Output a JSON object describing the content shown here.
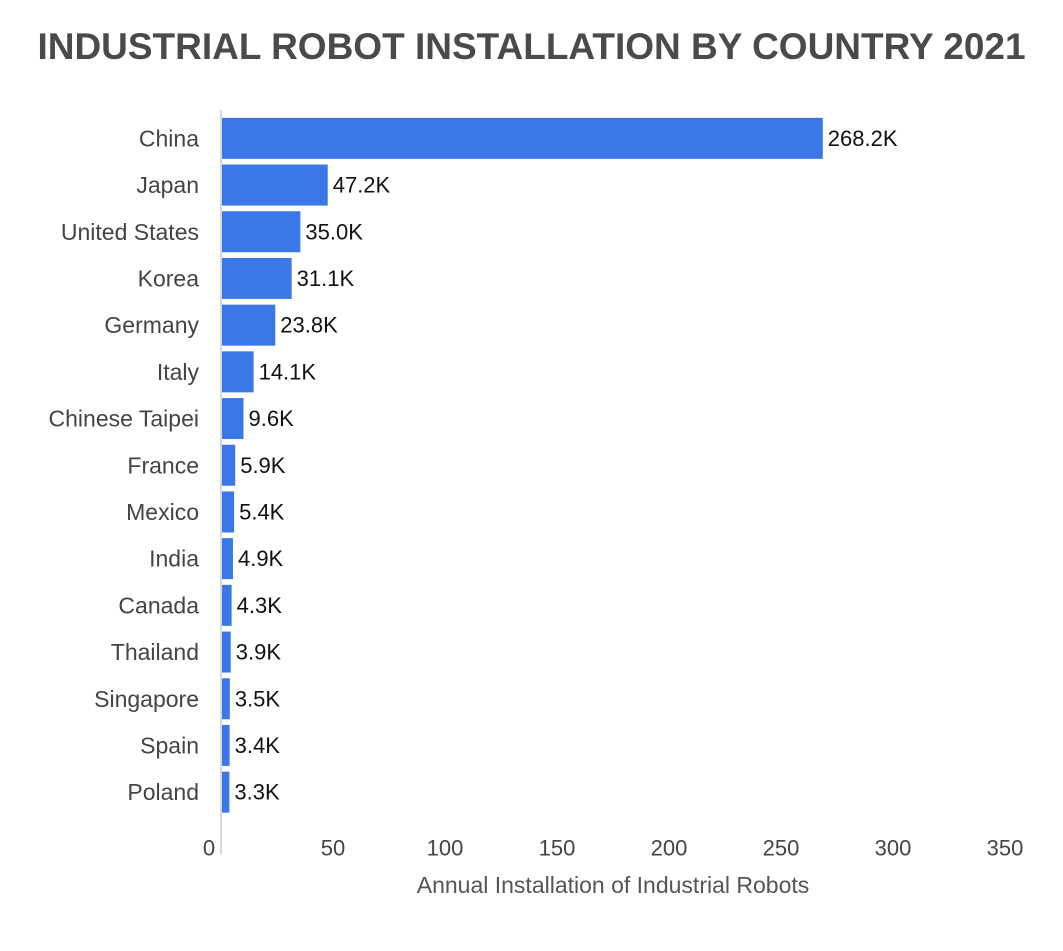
{
  "chart_data": {
    "type": "bar",
    "orientation": "horizontal",
    "title": "INDUSTRIAL ROBOT INSTALLATION BY COUNTRY 2021",
    "xlabel": "Annual Installation of Industrial Robots",
    "ylabel": "",
    "categories": [
      "China",
      "Japan",
      "United States",
      "Korea",
      "Germany",
      "Italy",
      "Chinese Taipei",
      "France",
      "Mexico",
      "India",
      "Canada",
      "Thailand",
      "Singapore",
      "Spain",
      "Poland"
    ],
    "values": [
      268.2,
      47.2,
      35.0,
      31.1,
      23.8,
      14.1,
      9.6,
      5.9,
      5.4,
      4.9,
      4.3,
      3.9,
      3.5,
      3.4,
      3.3
    ],
    "value_labels": [
      "268.2K",
      "47.2K",
      "35.0K",
      "31.1K",
      "23.8K",
      "14.1K",
      "9.6K",
      "5.9K",
      "5.4K",
      "4.9K",
      "4.3K",
      "3.9K",
      "3.5K",
      "3.4K",
      "3.3K"
    ],
    "xlim": [
      0,
      350
    ],
    "xticks": [
      "0",
      "50",
      "100",
      "150",
      "200",
      "250",
      "300",
      "350"
    ],
    "grid": false,
    "legend": "none",
    "bar_color": "#3b78e7",
    "axis_color": "#cccccc"
  }
}
